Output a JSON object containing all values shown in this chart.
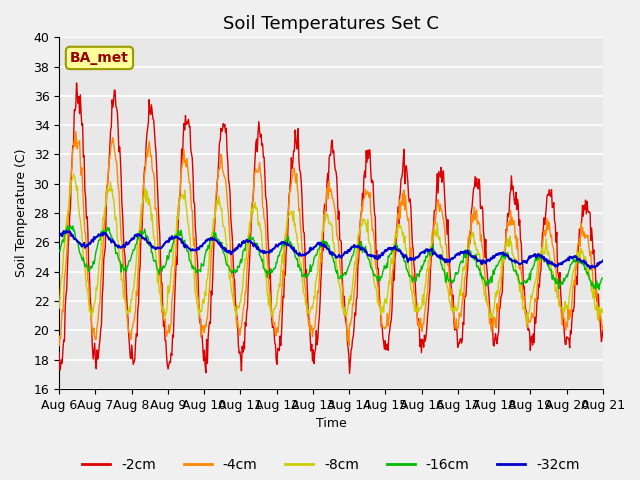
{
  "title": "Soil Temperatures Set C",
  "xlabel": "Time",
  "ylabel": "Soil Temperature (C)",
  "ylim": [
    16,
    40
  ],
  "yticks": [
    16,
    18,
    20,
    22,
    24,
    26,
    28,
    30,
    32,
    34,
    36,
    38,
    40
  ],
  "x_labels": [
    "Aug 6",
    "Aug 7",
    "Aug 8",
    "Aug 9",
    "Aug 10",
    "Aug 11",
    "Aug 12",
    "Aug 13",
    "Aug 14",
    "Aug 15",
    "Aug 16",
    "Aug 17",
    "Aug 18",
    "Aug 19",
    "Aug 20",
    "Aug 21"
  ],
  "n_days": 15,
  "pts_per_day": 48,
  "colors": {
    "-2cm": "#dd0000",
    "-4cm": "#ff8800",
    "-8cm": "#cccc00",
    "-16cm": "#00bb00",
    "-32cm": "#0000cc"
  },
  "legend_labels": [
    "-2cm",
    "-4cm",
    "-8cm",
    "-16cm",
    "-32cm"
  ],
  "annotation_text": "BA_met",
  "annotation_bg": "#ffff99",
  "annotation_border": "#999900",
  "plot_bg": "#e8e8e8",
  "fig_bg": "#f0f0f0",
  "title_fontsize": 13,
  "axis_fontsize": 9,
  "legend_fontsize": 10
}
